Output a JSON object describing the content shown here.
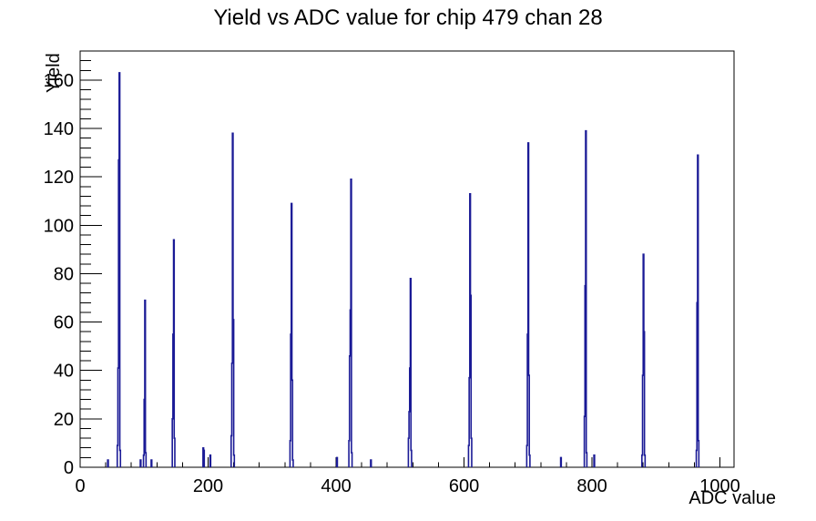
{
  "chart_data": {
    "type": "bar",
    "subtype": "root-histogram-spikes",
    "title": "Yield vs ADC value for chip 479 chan 28",
    "xlabel": "ADC value",
    "ylabel": "Yield",
    "xlim": [
      0,
      1022
    ],
    "ylim": [
      0,
      172
    ],
    "x_major_ticks": [
      0,
      200,
      400,
      600,
      800,
      1000
    ],
    "x_minor_step": 40,
    "y_major_ticks": [
      0,
      20,
      40,
      60,
      80,
      100,
      120,
      140,
      160
    ],
    "y_minor_step": 4,
    "grid": false,
    "legend": false,
    "line_color": "#1a1a96",
    "frame_color": "#000000",
    "clusters": [
      [
        [
          43,
          3
        ]
      ],
      [
        [
          58,
          9
        ],
        [
          59,
          41
        ],
        [
          60,
          127
        ],
        [
          61,
          163
        ],
        [
          62,
          7
        ]
      ],
      [
        [
          94,
          3
        ]
      ],
      [
        [
          99,
          5
        ],
        [
          100,
          28
        ],
        [
          101,
          69
        ],
        [
          102,
          6
        ]
      ],
      [
        [
          111,
          3
        ]
      ],
      [
        [
          144,
          20
        ],
        [
          145,
          55
        ],
        [
          146,
          94
        ],
        [
          147,
          12
        ]
      ],
      [
        [
          192,
          8
        ],
        [
          193,
          7
        ]
      ],
      [
        [
          203,
          5
        ]
      ],
      [
        [
          236,
          13
        ],
        [
          237,
          43
        ],
        [
          238,
          138
        ],
        [
          239,
          61
        ],
        [
          240,
          5
        ]
      ],
      [
        [
          328,
          11
        ],
        [
          329,
          55
        ],
        [
          330,
          109
        ],
        [
          331,
          36
        ],
        [
          332,
          3
        ]
      ],
      [
        [
          401,
          4
        ]
      ],
      [
        [
          420,
          11
        ],
        [
          421,
          46
        ],
        [
          422,
          65
        ],
        [
          423,
          119
        ],
        [
          424,
          6
        ]
      ],
      [
        [
          454,
          3
        ]
      ],
      [
        [
          513,
          12
        ],
        [
          514,
          23
        ],
        [
          515,
          41
        ],
        [
          516,
          78
        ],
        [
          517,
          7
        ]
      ],
      [
        [
          607,
          9
        ],
        [
          608,
          37
        ],
        [
          609,
          113
        ],
        [
          610,
          71
        ],
        [
          611,
          12
        ]
      ],
      [
        [
          698,
          9
        ],
        [
          699,
          55
        ],
        [
          700,
          134
        ],
        [
          701,
          38
        ],
        [
          702,
          5
        ]
      ],
      [
        [
          751,
          4
        ]
      ],
      [
        [
          788,
          21
        ],
        [
          789,
          75
        ],
        [
          790,
          139
        ],
        [
          791,
          6
        ]
      ],
      [
        [
          803,
          5
        ]
      ],
      [
        [
          878,
          5
        ],
        [
          879,
          38
        ],
        [
          880,
          88
        ],
        [
          881,
          56
        ],
        [
          882,
          5
        ]
      ],
      [
        [
          963,
          7
        ],
        [
          964,
          68
        ],
        [
          965,
          129
        ],
        [
          966,
          11
        ]
      ]
    ]
  }
}
